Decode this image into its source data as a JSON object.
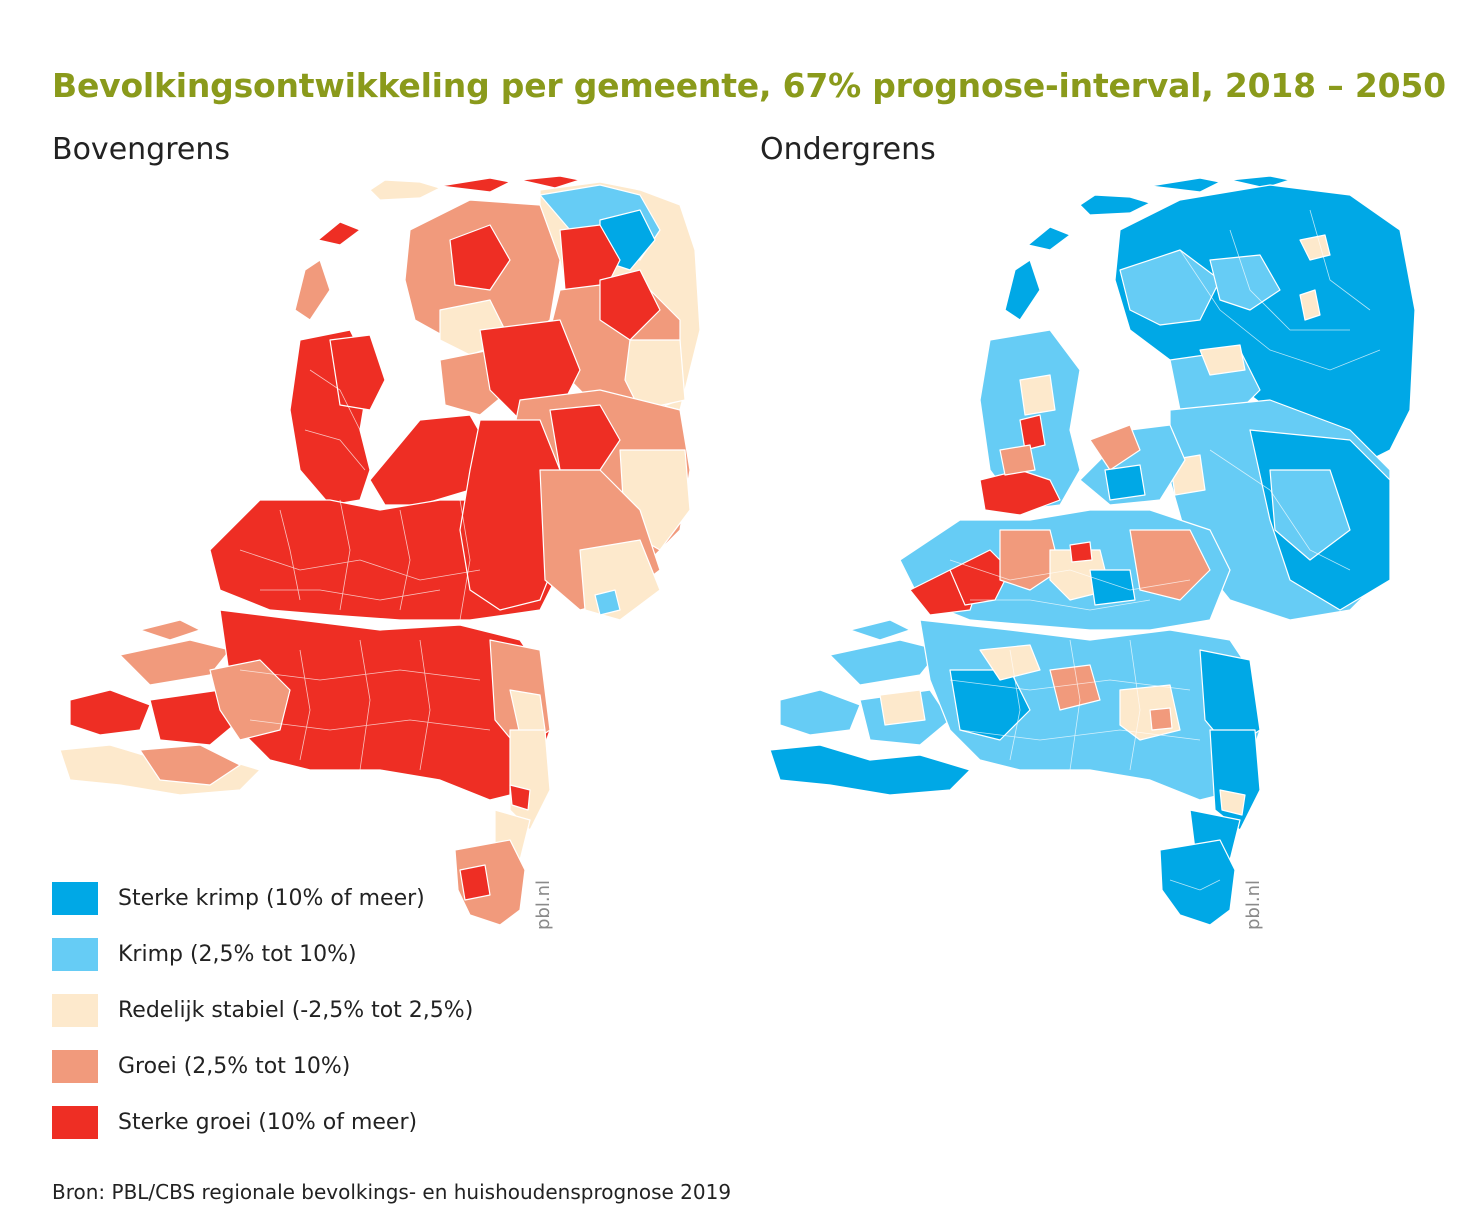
{
  "title": "Bevolkingsontwikkeling per gemeente, 67% prognose-interval, 2018 – 2050",
  "maps": [
    {
      "label": "Bovengrens",
      "credit": "pbl.nl"
    },
    {
      "label": "Ondergrens",
      "credit": "pbl.nl"
    }
  ],
  "legend": [
    {
      "label": "Sterke krimp (10% of meer)",
      "color": "#00a8e6"
    },
    {
      "label": "Krimp (2,5% tot 10%)",
      "color": "#66ccf5"
    },
    {
      "label": "Redelijk stabiel (-2,5% tot 2,5%)",
      "color": "#fde9cc"
    },
    {
      "label": "Groei (2,5% tot 10%)",
      "color": "#f19a7c"
    },
    {
      "label": "Sterke groei (10% of meer)",
      "color": "#ee2e24"
    }
  ],
  "source": "Bron: PBL/CBS regionale bevolkings- en huishoudensprognose 2019"
}
